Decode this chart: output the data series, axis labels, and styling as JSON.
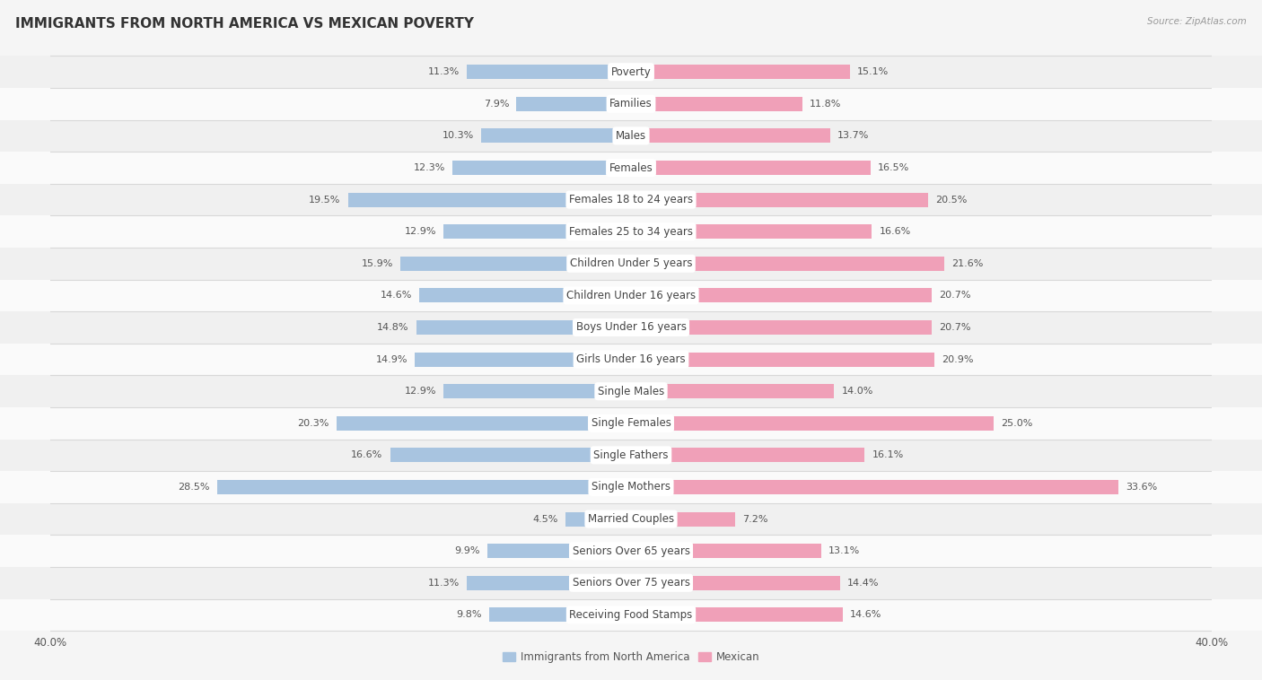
{
  "title": "IMMIGRANTS FROM NORTH AMERICA VS MEXICAN POVERTY",
  "source": "Source: ZipAtlas.com",
  "categories": [
    "Poverty",
    "Families",
    "Males",
    "Females",
    "Females 18 to 24 years",
    "Females 25 to 34 years",
    "Children Under 5 years",
    "Children Under 16 years",
    "Boys Under 16 years",
    "Girls Under 16 years",
    "Single Males",
    "Single Females",
    "Single Fathers",
    "Single Mothers",
    "Married Couples",
    "Seniors Over 65 years",
    "Seniors Over 75 years",
    "Receiving Food Stamps"
  ],
  "left_values": [
    11.3,
    7.9,
    10.3,
    12.3,
    19.5,
    12.9,
    15.9,
    14.6,
    14.8,
    14.9,
    12.9,
    20.3,
    16.6,
    28.5,
    4.5,
    9.9,
    11.3,
    9.8
  ],
  "right_values": [
    15.1,
    11.8,
    13.7,
    16.5,
    20.5,
    16.6,
    21.6,
    20.7,
    20.7,
    20.9,
    14.0,
    25.0,
    16.1,
    33.6,
    7.2,
    13.1,
    14.4,
    14.6
  ],
  "left_color": "#a8c4e0",
  "right_color": "#f0a0b8",
  "left_label": "Immigrants from North America",
  "right_label": "Mexican",
  "axis_limit": 40.0,
  "row_bg_odd": "#f0f0f0",
  "row_bg_even": "#fafafa",
  "separator_color": "#d8d8d8",
  "title_fontsize": 11,
  "label_fontsize": 8.5,
  "value_fontsize": 8,
  "tick_fontsize": 8.5,
  "text_color": "#555555",
  "title_color": "#333333",
  "source_color": "#999999",
  "pill_color": "#ffffff",
  "pill_text_color": "#444444"
}
